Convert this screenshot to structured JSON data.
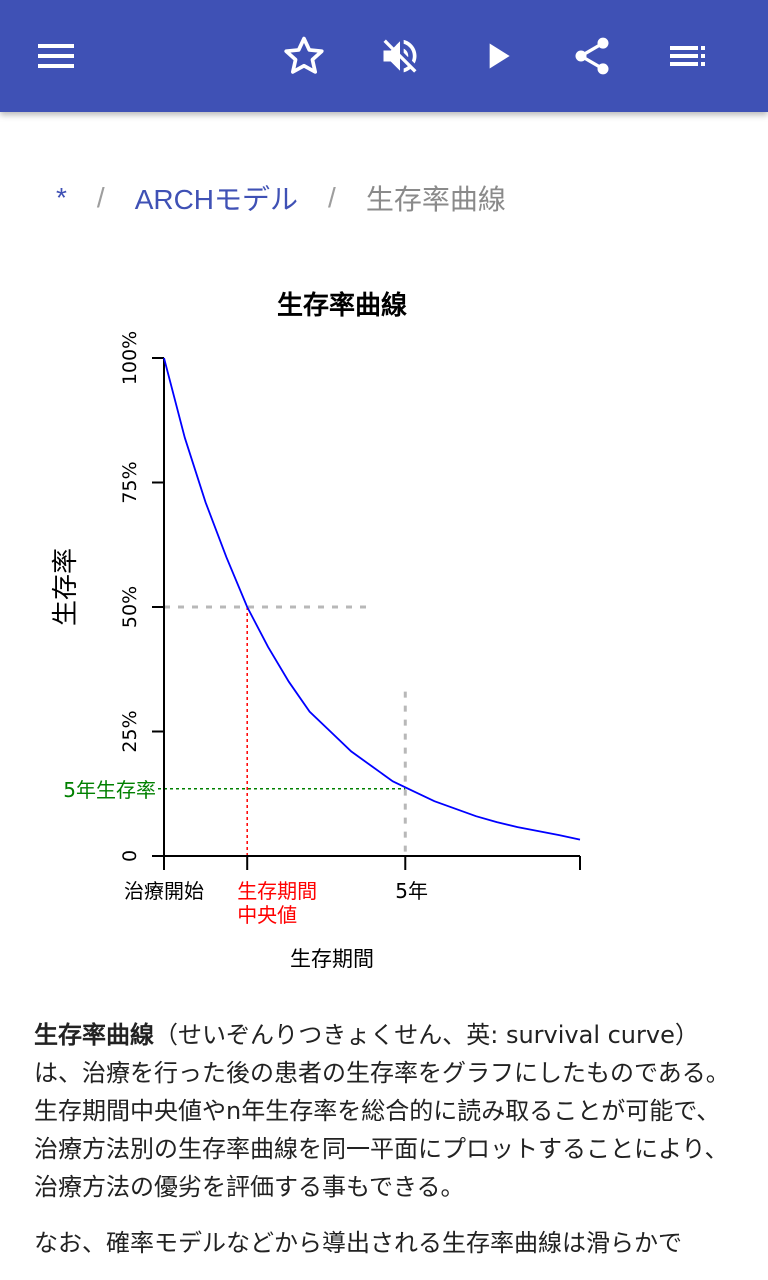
{
  "appbar": {
    "bg_color": "#3f51b5",
    "icons": [
      "menu-icon",
      "star-icon",
      "volume-off-icon",
      "play-icon",
      "share-icon",
      "playlist-icon"
    ]
  },
  "breadcrumb": {
    "items": [
      "*",
      "ARCHモデル",
      "生存率曲線"
    ],
    "separator": "/"
  },
  "chart_data": {
    "type": "line",
    "title": "生存率曲線",
    "ylabel": "生存率",
    "xlabel": "生存期間",
    "ylim": [
      0,
      100
    ],
    "yticks": [
      0,
      25,
      50,
      75,
      100
    ],
    "ytick_labels": [
      "0",
      "25%",
      "50%",
      "75%",
      "100%"
    ],
    "xlim": [
      0,
      10
    ],
    "xtick_labels": [
      {
        "x": 0,
        "label": "治療開始",
        "color": "#000000"
      },
      {
        "x": 2,
        "label": "生存期間\n中央値",
        "color": "#ff0000"
      },
      {
        "x": 5.8,
        "label": "5年",
        "color": "#000000"
      }
    ],
    "series": [
      {
        "color": "#0000ff",
        "x": [
          0,
          0.5,
          1,
          1.5,
          2,
          2.5,
          3,
          3.5,
          4,
          4.5,
          5,
          5.5,
          6,
          6.5,
          7,
          7.5,
          8,
          8.5,
          9,
          9.5,
          10
        ],
        "y": [
          100,
          84,
          71,
          60,
          50,
          42,
          35,
          29,
          25,
          21,
          18,
          15,
          13,
          11,
          9.5,
          8,
          6.8,
          5.8,
          5,
          4.2,
          3.3
        ]
      }
    ],
    "annotations": [
      {
        "label": "5年生存率",
        "y": 13.5,
        "color": "#008000"
      },
      {
        "label": "",
        "y": 50,
        "color": "#b0b0b0"
      }
    ],
    "grid": false
  },
  "article": {
    "p1_term": "生存率曲線",
    "p1_rest": "（せいぞんりつきょくせん、英: survival curve）は、治療を行った後の患者の生存率をグラフにしたものである。生存期間中央値やn年生存率を総合的に読み取ることが可能で、治療方法別の生存率曲線を同一平面にプロットすることにより、治療方法の優劣を評価する事もできる。",
    "p2": "なお、確率モデルなどから導出される生存率曲線は滑らかで"
  }
}
